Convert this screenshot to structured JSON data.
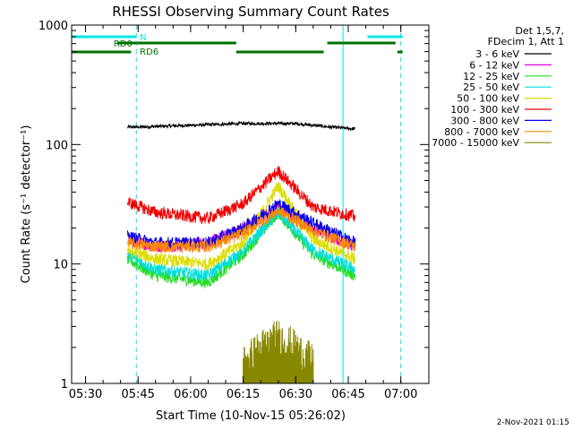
{
  "chart_data": {
    "type": "line",
    "title": "RHESSI Observing Summary Count Rates",
    "xlabel": "Start Time (10-Nov-15 05:26:02)",
    "ylabel": "Count Rate (s⁻¹ detector⁻¹)",
    "y_scale": "log",
    "ylim": [
      1,
      1000
    ],
    "xlim_minutes": [
      "05:26:02",
      "07:08:00"
    ],
    "x_ticks": [
      "05:30",
      "05:45",
      "06:00",
      "06:15",
      "06:30",
      "06:45",
      "07:00"
    ],
    "y_ticks": [
      "1",
      "10",
      "100",
      "1000"
    ],
    "footer_date": "2-Nov-2021 01:15",
    "legend_header": [
      "Det 1,5,7,",
      "FDecim 1, Att 1"
    ],
    "legend_position": "right",
    "flags": [
      {
        "label": "N",
        "color": "#00e5e5",
        "segments": [
          [
            "05:26:02",
            "05:44:30"
          ],
          [
            "06:50:30",
            "07:00:30"
          ]
        ]
      },
      {
        "label": "RD0",
        "color": "#007000",
        "segments": [
          [
            "05:39:00",
            "05:44:30"
          ],
          [
            "05:44:30",
            "06:13:00"
          ],
          [
            "06:39:00",
            "06:58:30"
          ]
        ]
      },
      {
        "label": "RD6",
        "color": "#007000",
        "segments": [
          [
            "05:26:02",
            "05:43:00"
          ],
          [
            "06:13:00",
            "06:38:00"
          ],
          [
            "06:59:00",
            "07:00:30"
          ]
        ]
      }
    ],
    "vlines": [
      {
        "time": "05:26:02",
        "color": "#00e5e5",
        "style": "solid"
      },
      {
        "time": "05:44:30",
        "color": "#00e5e5",
        "style": "dashed"
      },
      {
        "time": "06:43:30",
        "color": "#00e5e5",
        "style": "solid"
      },
      {
        "time": "07:00:00",
        "color": "#00e5e5",
        "style": "dashed"
      }
    ],
    "series": [
      {
        "name": "3 - 6 keV",
        "color": "#000000",
        "x": [
          "05:42:00",
          "05:45:00",
          "06:00:00",
          "06:15:00",
          "06:30:00",
          "06:40:00",
          "06:47:00"
        ],
        "values": [
          140,
          140,
          145,
          150,
          150,
          140,
          135
        ]
      },
      {
        "name": "6 - 12 keV",
        "color": "#dd00dd",
        "x": [
          "05:42:00",
          "05:50:00",
          "06:05:00",
          "06:15:00",
          "06:25:00",
          "06:35:00",
          "06:47:00"
        ],
        "values": [
          16,
          14,
          15,
          20,
          30,
          20,
          14
        ]
      },
      {
        "name": "12 - 25 keV",
        "color": "#22dd22",
        "x": [
          "05:42:00",
          "05:50:00",
          "06:05:00",
          "06:15:00",
          "06:25:00",
          "06:35:00",
          "06:47:00"
        ],
        "values": [
          11,
          8,
          7,
          12,
          27,
          12,
          8
        ]
      },
      {
        "name": "25 - 50 keV",
        "color": "#00dddd",
        "x": [
          "05:42:00",
          "05:50:00",
          "06:05:00",
          "06:15:00",
          "06:25:00",
          "06:35:00",
          "06:47:00"
        ],
        "values": [
          12,
          9,
          8,
          13,
          27,
          13,
          9
        ]
      },
      {
        "name": "50 - 100 keV",
        "color": "#dddd00",
        "x": [
          "05:42:00",
          "05:50:00",
          "06:05:00",
          "06:15:00",
          "06:25:00",
          "06:35:00",
          "06:47:00"
        ],
        "values": [
          13,
          11,
          10,
          15,
          45,
          16,
          11
        ]
      },
      {
        "name": "100 - 300 keV",
        "color": "#ee0000",
        "x": [
          "05:42:00",
          "05:50:00",
          "06:05:00",
          "06:15:00",
          "06:25:00",
          "06:35:00",
          "06:47:00"
        ],
        "values": [
          33,
          27,
          24,
          32,
          60,
          30,
          25
        ]
      },
      {
        "name": "300 - 800 keV",
        "color": "#0000ee",
        "x": [
          "05:42:00",
          "05:50:00",
          "06:05:00",
          "06:15:00",
          "06:25:00",
          "06:35:00",
          "06:47:00"
        ],
        "values": [
          17,
          15,
          15,
          20,
          32,
          22,
          15
        ]
      },
      {
        "name": "800 - 7000 keV",
        "color": "#ff8800",
        "x": [
          "05:42:00",
          "05:50:00",
          "06:05:00",
          "06:15:00",
          "06:25:00",
          "06:35:00",
          "06:47:00"
        ],
        "values": [
          15,
          14,
          14,
          18,
          28,
          19,
          14
        ]
      },
      {
        "name": "7000 - 15000 keV",
        "color": "#888800",
        "x": [
          "06:15:00",
          "06:20:00",
          "06:25:00",
          "06:30:00",
          "06:35:00"
        ],
        "values": [
          1.5,
          2.0,
          2.5,
          2.0,
          1.5
        ]
      }
    ]
  }
}
